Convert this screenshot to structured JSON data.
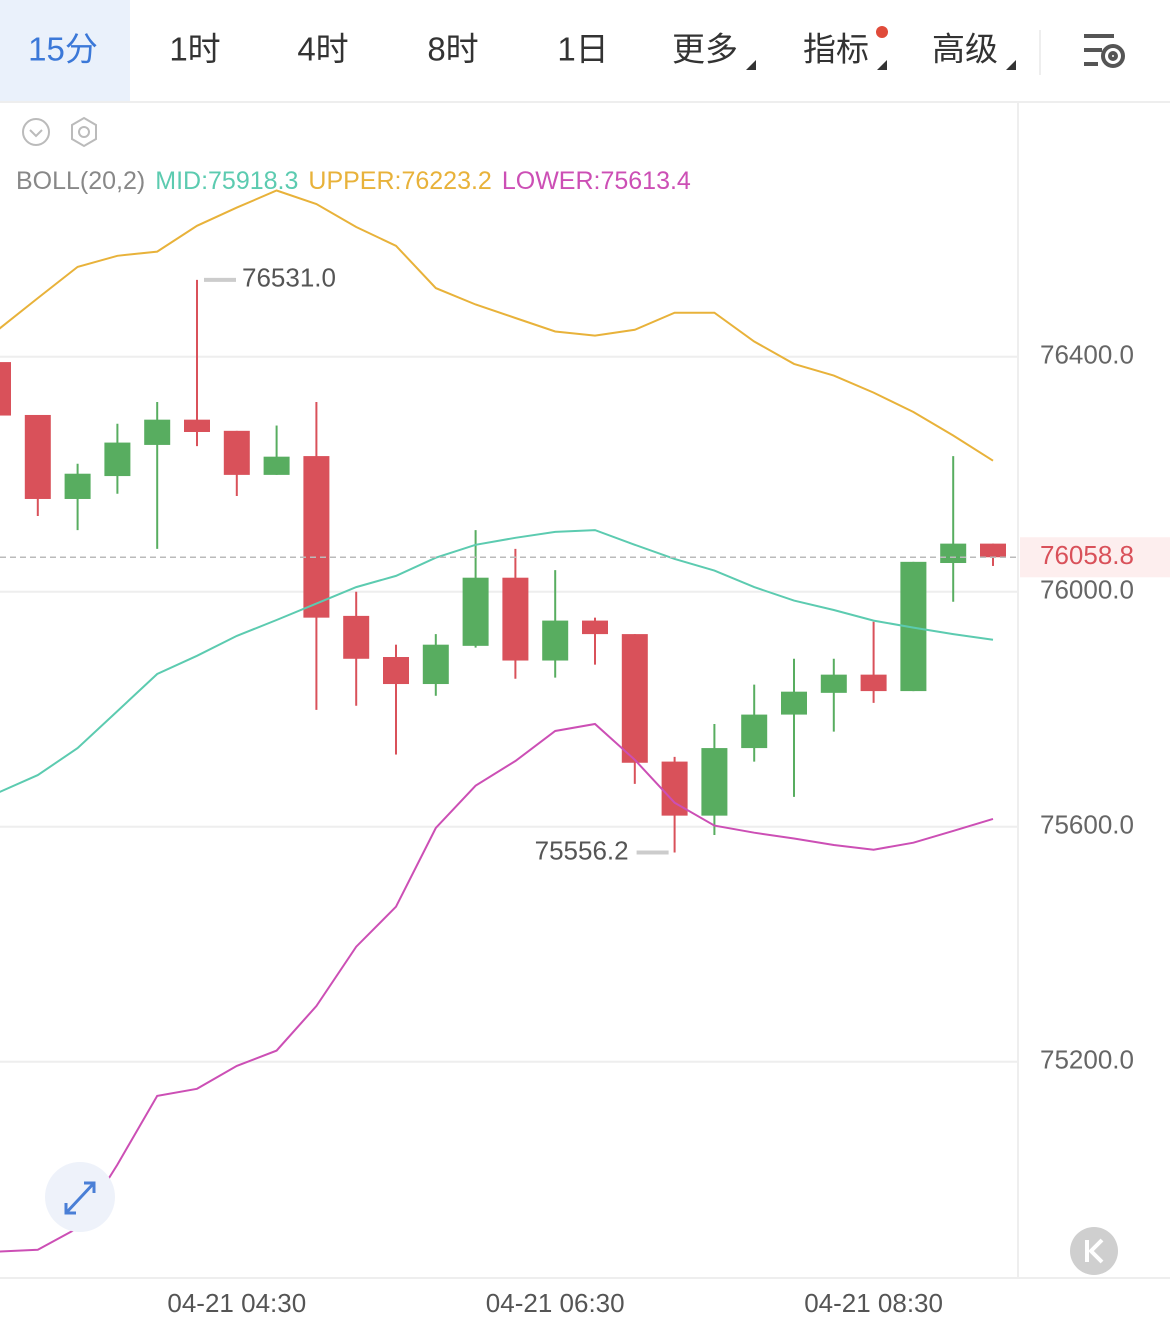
{
  "tabs": [
    "15分",
    "1时",
    "4时",
    "8时",
    "1日",
    "更多",
    "指标",
    "高级"
  ],
  "chart_data": {
    "type": "candlestick",
    "indicator": "BOLL(20,2)",
    "categories": [
      null,
      null,
      null,
      null,
      null,
      null,
      "04-21 04:30",
      null,
      null,
      null,
      null,
      null,
      null,
      null,
      "04-21 06:30",
      null,
      null,
      null,
      null,
      null,
      null,
      null,
      "04-21 08:30",
      null,
      null,
      null
    ],
    "open": [
      76391,
      76301,
      76158,
      76197,
      76250,
      76293,
      76274,
      76199,
      76231,
      75959,
      75889,
      75843,
      75908,
      76024,
      75883,
      75951,
      75928,
      75711,
      75619,
      75734,
      75791,
      75828,
      75859,
      75831,
      76049,
      76082
    ],
    "high": [
      76391,
      76301,
      76218,
      76286,
      76323,
      76531,
      76274,
      76283,
      76323,
      76000,
      75910,
      75928,
      76105,
      76073,
      76037,
      75956,
      75928,
      75719,
      75775,
      75842,
      75886,
      75886,
      75949,
      76051,
      76231,
      76082
    ],
    "low": [
      76300,
      76129,
      76105,
      76167,
      76073,
      76248,
      76163,
      76199,
      75799,
      75806,
      75723,
      75823,
      75905,
      75852,
      75854,
      75876,
      75673,
      75556.2,
      75586,
      75711,
      75651,
      75762,
      75811,
      75831,
      75983,
      76044
    ],
    "close": [
      76300,
      76158,
      76201,
      76254,
      76293,
      76272,
      76199,
      76230,
      75956,
      75886,
      75843,
      75910,
      76024,
      75883,
      75951,
      75928,
      75709,
      75619,
      75734,
      75791,
      75830,
      75859,
      75831,
      76051,
      76082,
      76058.8
    ],
    "up_color": "#58ad60",
    "down_color": "#d9515a",
    "series": [
      {
        "name": "MID:75918.3",
        "color": "#5ccbb0",
        "values": [
          75658,
          75688,
          75734,
          75797,
          75860,
          75891,
          75925,
          75952,
          75980,
          76008,
          76027,
          76058,
          76080,
          76092,
          76102,
          76105,
          76080,
          76056,
          76036,
          76008,
          75985,
          75969,
          75951,
          75939,
          75928,
          75918.3
        ]
      },
      {
        "name": "UPPER:76223.2",
        "color": "#e8b23a",
        "values": [
          76446,
          76500,
          76553,
          76572,
          76579,
          76623,
          76654,
          76683,
          76660,
          76621,
          76589,
          76517,
          76489,
          76466,
          76443,
          76436,
          76446,
          76475,
          76475,
          76426,
          76388,
          76368,
          76339,
          76306,
          76266,
          76223.2
        ]
      },
      {
        "name": "LOWER:75613.4",
        "color": "#cc4fb5",
        "values": [
          74877,
          74880,
          74917,
          75025,
          75142,
          75154,
          75193,
          75219,
          75295,
          75396,
          75464,
          75598,
          75670,
          75712,
          75763,
          75775,
          75714,
          75641,
          75602,
          75590,
          75580,
          75569,
          75561,
          75573,
          75593,
          75613.4
        ]
      }
    ],
    "max_label": {
      "value": 76531,
      "label": "76531.0"
    },
    "min_label": 75556.2,
    "last_price": 76058.8,
    "ylim": [
      74832,
      76832
    ],
    "yticks": [
      {
        "value": 75200,
        "label": "75200.0"
      },
      {
        "value": 75600,
        "label": "75600.0"
      },
      {
        "value": 76000,
        "label": "76000.0"
      },
      {
        "value": 76400,
        "label": "76400.0"
      }
    ],
    "grid": true
  }
}
